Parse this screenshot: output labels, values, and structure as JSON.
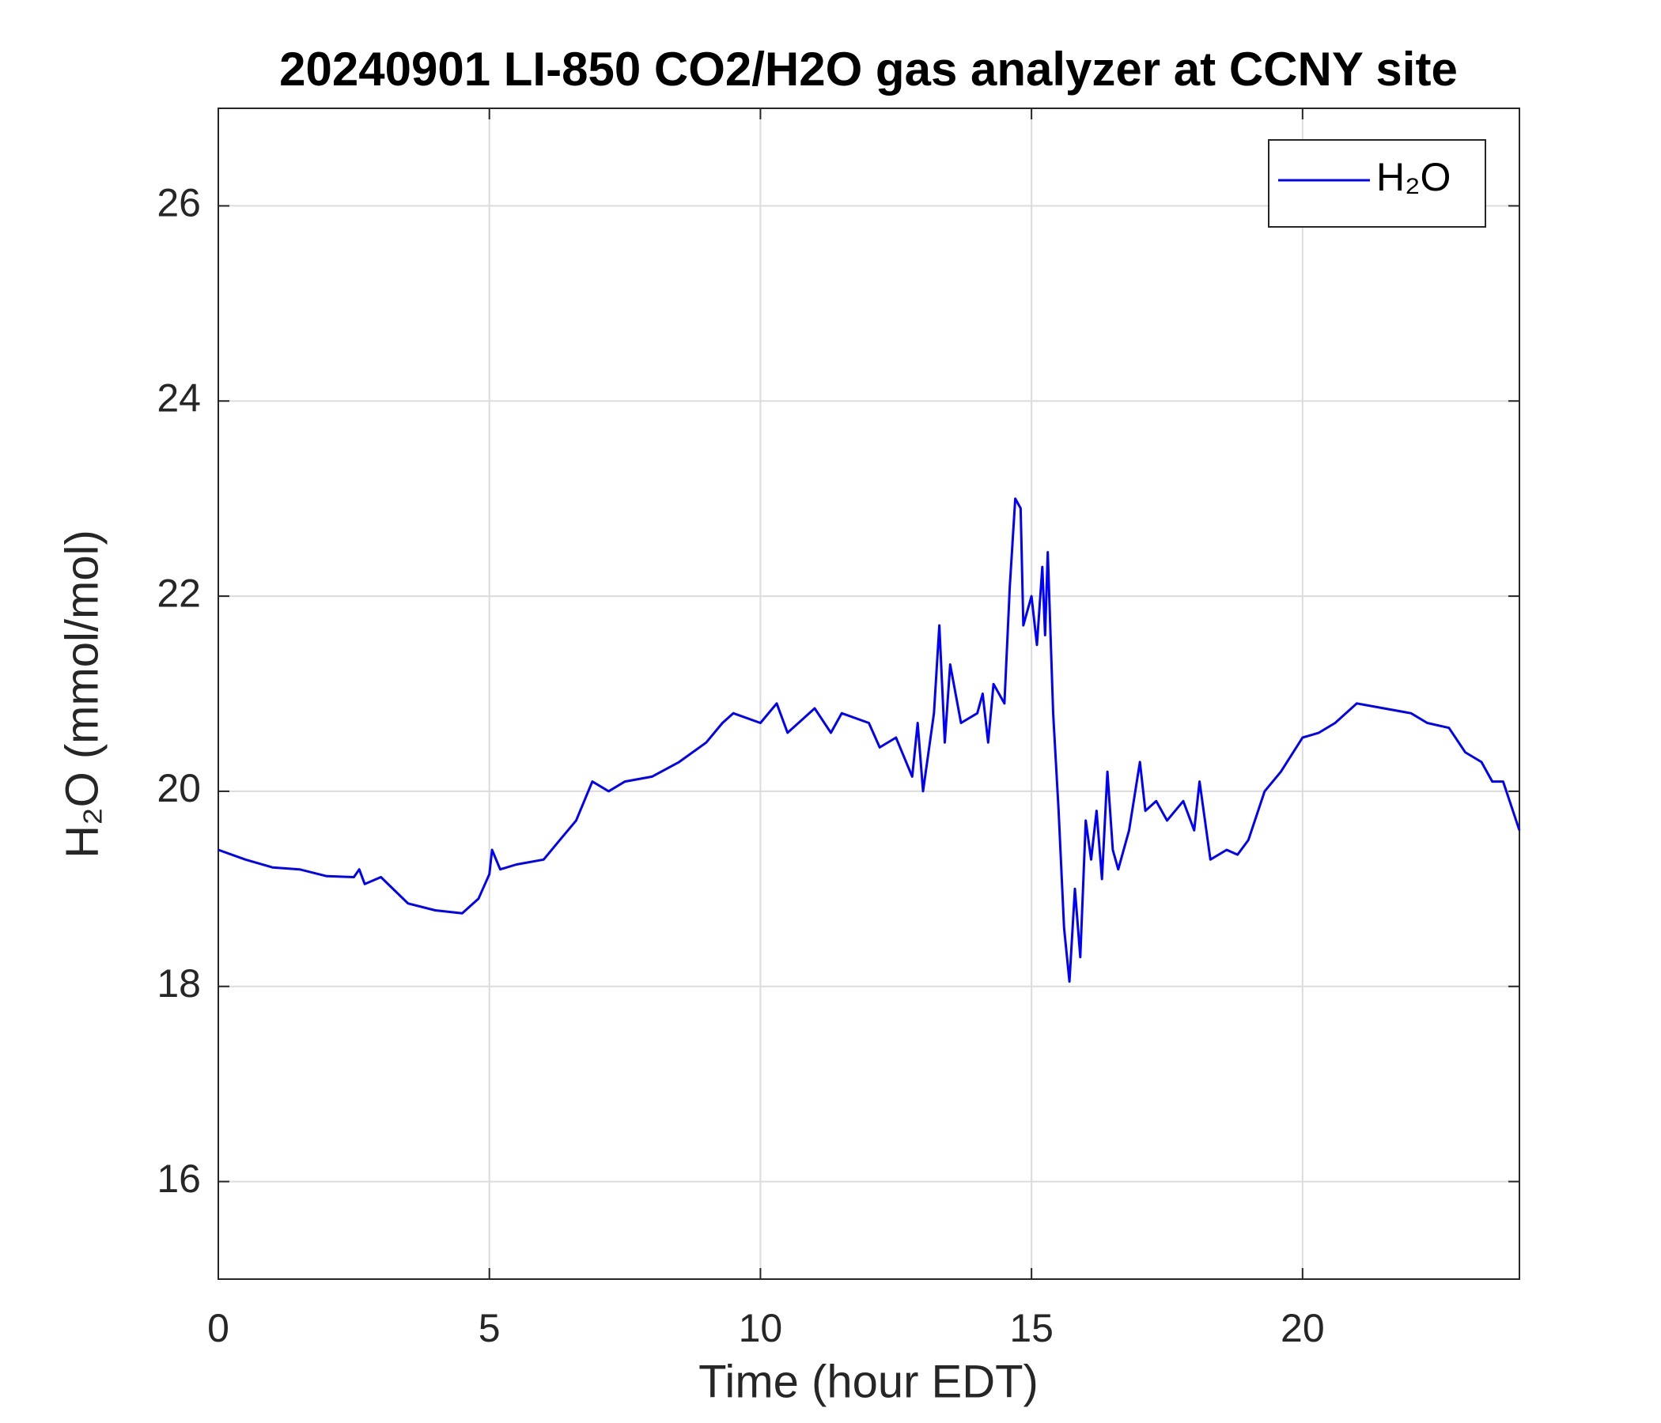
{
  "chart_data": {
    "type": "line",
    "title": "20240901 LI-850 CO2/H2O gas analyzer at CCNY site",
    "xlabel": "Time (hour EDT)",
    "ylabel": "H₂O (mmol/mol)",
    "x": [
      0,
      0.5,
      1,
      1.5,
      2,
      2.5,
      2.6,
      2.7,
      3,
      3.5,
      4,
      4.5,
      4.8,
      5,
      5.05,
      5.2,
      5.5,
      6,
      6.3,
      6.6,
      6.9,
      7.2,
      7.5,
      8,
      8.5,
      9,
      9.3,
      9.5,
      10,
      10.3,
      10.5,
      11,
      11.3,
      11.5,
      12,
      12.2,
      12.5,
      12.8,
      12.9,
      13,
      13.2,
      13.3,
      13.4,
      13.5,
      13.7,
      14,
      14.1,
      14.2,
      14.3,
      14.5,
      14.6,
      14.7,
      14.8,
      14.85,
      15,
      15.1,
      15.2,
      15.25,
      15.3,
      15.4,
      15.5,
      15.6,
      15.7,
      15.8,
      15.9,
      16,
      16.1,
      16.2,
      16.3,
      16.4,
      16.5,
      16.6,
      16.8,
      17,
      17.1,
      17.3,
      17.5,
      17.8,
      18,
      18.1,
      18.3,
      18.6,
      18.8,
      19,
      19.3,
      19.6,
      20,
      20.3,
      20.6,
      21,
      21.5,
      22,
      22.3,
      22.7,
      23,
      23.3,
      23.5,
      23.7,
      24
    ],
    "series": [
      {
        "name": "H₂O",
        "color": "#0000ff",
        "values": [
          19.4,
          19.3,
          19.22,
          19.2,
          19.13,
          19.12,
          19.2,
          19.05,
          19.12,
          18.85,
          18.78,
          18.75,
          18.9,
          19.15,
          19.4,
          19.2,
          19.25,
          19.3,
          19.5,
          19.7,
          20.1,
          20.0,
          20.1,
          20.15,
          20.3,
          20.5,
          20.7,
          20.8,
          20.7,
          20.9,
          20.6,
          20.85,
          20.6,
          20.8,
          20.7,
          20.45,
          20.55,
          20.15,
          20.7,
          20.0,
          20.8,
          21.7,
          20.5,
          21.3,
          20.7,
          20.8,
          21.0,
          20.5,
          21.1,
          20.9,
          22.1,
          23.0,
          22.9,
          21.7,
          22.0,
          21.5,
          22.3,
          21.6,
          22.45,
          20.8,
          19.8,
          18.6,
          18.05,
          19.0,
          18.3,
          19.7,
          19.3,
          19.8,
          19.1,
          20.2,
          19.4,
          19.2,
          19.6,
          20.3,
          19.8,
          19.9,
          19.7,
          19.9,
          19.6,
          20.1,
          19.3,
          19.4,
          19.35,
          19.5,
          20.0,
          20.2,
          20.55,
          20.6,
          20.7,
          20.9,
          20.85,
          20.8,
          20.7,
          20.65,
          20.4,
          20.3,
          20.1,
          20.1,
          19.6
        ]
      }
    ],
    "xlim": [
      0,
      24
    ],
    "xticks": [
      0,
      5,
      10,
      15,
      20
    ],
    "ylim": [
      15,
      27
    ],
    "yticks": [
      16,
      18,
      20,
      22,
      24,
      26
    ],
    "grid": true,
    "legend": "northeast"
  }
}
